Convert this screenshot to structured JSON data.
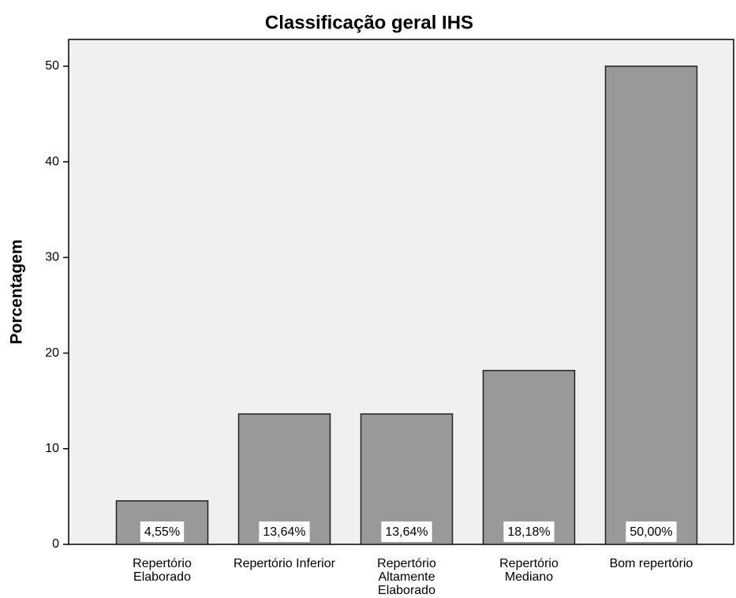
{
  "chart_data": {
    "type": "bar",
    "title": "Classificação geral IHS",
    "y_label": "Porcentagem",
    "categories": [
      "Repertório\nElaborado",
      "Repertório Inferior",
      "Repertório\nAltamente\nElaborado",
      "Repertório\nMediano",
      "Bom repertório"
    ],
    "values": [
      4.55,
      13.64,
      13.64,
      18.18,
      50.0
    ],
    "value_labels": [
      "4,55%",
      "13,64%",
      "13,64%",
      "18,18%",
      "50,00%"
    ],
    "color": "#999999",
    "ylim": [
      0,
      52.8
    ],
    "yticks": [
      0,
      10,
      20,
      30,
      40,
      50
    ]
  }
}
